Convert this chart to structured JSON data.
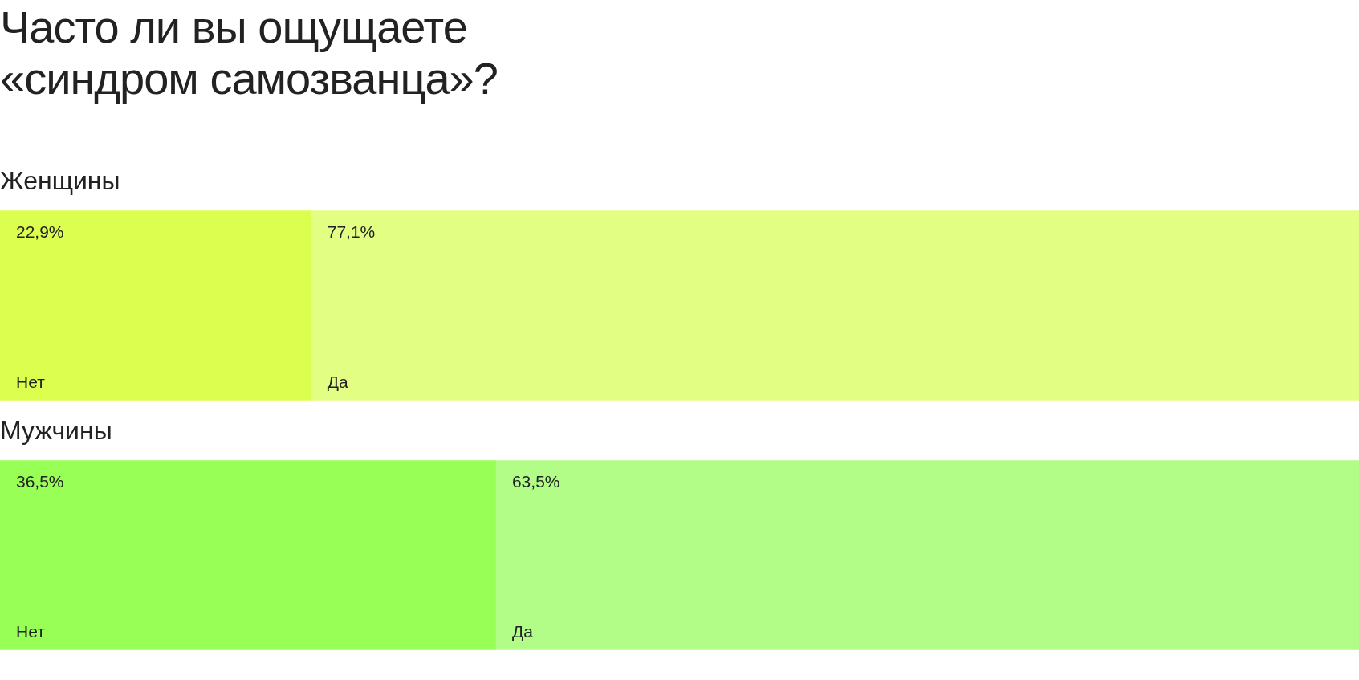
{
  "chart_data": {
    "type": "bar",
    "title": "Часто ли вы ощущаете «синдром самозванца»?",
    "orientation": "horizontal",
    "stacked": true,
    "categories": [
      "Женщины",
      "Мужчины"
    ],
    "series": [
      {
        "name": "Нет",
        "colors": [
          "#dcff4f",
          "#97ff55"
        ],
        "values": [
          22.9,
          36.5
        ],
        "value_labels": [
          "22,9%",
          "36,5%"
        ]
      },
      {
        "name": "Да",
        "colors": [
          "#e3ff83",
          "#b1fd88"
        ],
        "values": [
          77.1,
          63.5
        ],
        "value_labels": [
          "77,1%",
          "63,5%"
        ]
      }
    ]
  }
}
